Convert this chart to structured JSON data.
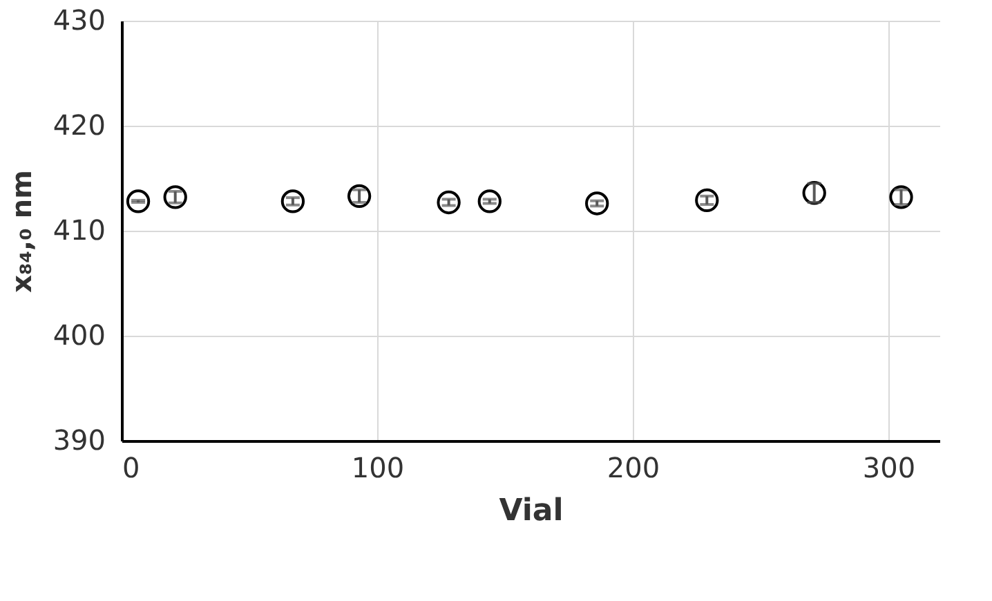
{
  "chart_data": {
    "type": "scatter",
    "xlabel": "Vial",
    "ylabel": "x₈₄,₀ nm",
    "x": [
      6.5,
      21,
      67,
      93,
      128,
      144,
      186,
      229,
      271,
      305
    ],
    "values": [
      412.8,
      413.2,
      412.8,
      413.3,
      412.7,
      412.8,
      412.6,
      412.9,
      413.6,
      413.2
    ],
    "errors": [
      0.1,
      0.55,
      0.35,
      0.6,
      0.3,
      0.2,
      0.25,
      0.4,
      0.9,
      0.7
    ],
    "color": "#000000",
    "marker": "circle",
    "xlim": [
      0,
      320
    ],
    "xticks": [
      0,
      100,
      200,
      300
    ],
    "ylim": [
      390,
      430
    ],
    "yticks": [
      390,
      400,
      410,
      420,
      430
    ],
    "grid": true
  }
}
